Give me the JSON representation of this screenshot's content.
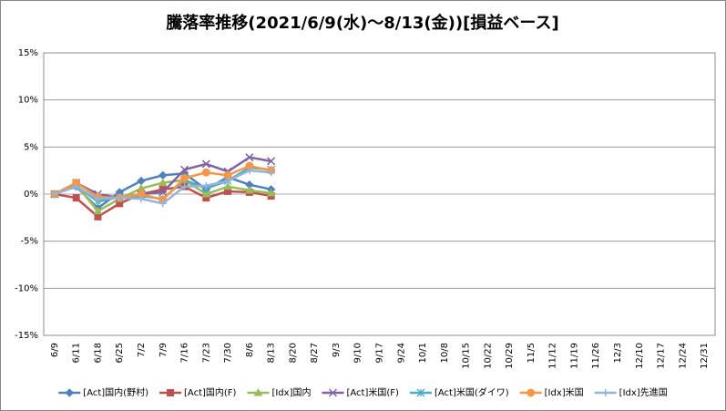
{
  "chart_data": {
    "type": "line",
    "title": "騰落率推移(2021/6/9(水)～8/13(金))[損益ベース]",
    "categories": [
      "6/9",
      "6/11",
      "6/18",
      "6/25",
      "7/2",
      "7/9",
      "7/16",
      "7/23",
      "7/30",
      "8/6",
      "8/13",
      "8/20",
      "8/27",
      "9/3",
      "9/10",
      "9/17",
      "9/24",
      "10/1",
      "10/8",
      "10/15",
      "10/22",
      "10/29",
      "11/5",
      "11/12",
      "11/19",
      "11/26",
      "12/3",
      "12/10",
      "12/17",
      "12/24",
      "12/31"
    ],
    "series": [
      {
        "name": "[Act]国内(野村)",
        "color": "#4f81bd",
        "marker": "diamond",
        "values": [
          0,
          0.8,
          -1.5,
          0.2,
          1.4,
          2.0,
          2.2,
          0.5,
          1.8,
          1.0,
          0.5,
          null,
          null,
          null,
          null,
          null,
          null,
          null,
          null,
          null,
          null,
          null,
          null,
          null,
          null,
          null,
          null,
          null,
          null,
          null,
          null
        ]
      },
      {
        "name": "[Act]国内(F)",
        "color": "#c0504d",
        "marker": "square",
        "values": [
          0,
          -0.4,
          -2.4,
          -1.0,
          0,
          0.5,
          0.8,
          -0.4,
          0.3,
          0.2,
          -0.2,
          null,
          null,
          null,
          null,
          null,
          null,
          null,
          null,
          null,
          null,
          null,
          null,
          null,
          null,
          null,
          null,
          null,
          null,
          null,
          null
        ]
      },
      {
        "name": "[Idx]国内",
        "color": "#9bbb59",
        "marker": "triangle",
        "values": [
          0,
          1.0,
          -1.8,
          -0.5,
          0.6,
          1.2,
          1.5,
          0,
          0.8,
          0.4,
          0.1,
          null,
          null,
          null,
          null,
          null,
          null,
          null,
          null,
          null,
          null,
          null,
          null,
          null,
          null,
          null,
          null,
          null,
          null,
          null,
          null
        ]
      },
      {
        "name": "[Act]米国(F)",
        "color": "#8064a2",
        "marker": "x",
        "values": [
          0,
          1.2,
          0.0,
          -0.4,
          0,
          0.2,
          2.6,
          3.2,
          2.4,
          3.9,
          3.5,
          null,
          null,
          null,
          null,
          null,
          null,
          null,
          null,
          null,
          null,
          null,
          null,
          null,
          null,
          null,
          null,
          null,
          null,
          null,
          null
        ]
      },
      {
        "name": "[Act]米国(ダイワ)",
        "color": "#4bacc6",
        "marker": "star",
        "values": [
          0,
          0.9,
          -0.8,
          -0.3,
          -0.2,
          -0.5,
          1.5,
          0.6,
          1.4,
          2.8,
          2.6,
          null,
          null,
          null,
          null,
          null,
          null,
          null,
          null,
          null,
          null,
          null,
          null,
          null,
          null,
          null,
          null,
          null,
          null,
          null,
          null
        ]
      },
      {
        "name": "[Idx]米国",
        "color": "#f79646",
        "marker": "circle",
        "values": [
          0,
          1.2,
          -0.3,
          -0.4,
          0,
          -0.6,
          1.7,
          2.3,
          2.0,
          3.0,
          2.5,
          null,
          null,
          null,
          null,
          null,
          null,
          null,
          null,
          null,
          null,
          null,
          null,
          null,
          null,
          null,
          null,
          null,
          null,
          null,
          null
        ]
      },
      {
        "name": "[Idx]先進国",
        "color": "#95b3d7",
        "marker": "plus",
        "values": [
          0,
          0.8,
          -0.5,
          -0.4,
          -0.5,
          -1.0,
          0.8,
          0.9,
          1.4,
          2.5,
          2.3,
          null,
          null,
          null,
          null,
          null,
          null,
          null,
          null,
          null,
          null,
          null,
          null,
          null,
          null,
          null,
          null,
          null,
          null,
          null,
          null
        ]
      }
    ],
    "ylim": [
      -15,
      15
    ],
    "yticks": [
      {
        "value": -15,
        "label": "-15%"
      },
      {
        "value": -10,
        "label": "-10%"
      },
      {
        "value": -5,
        "label": "-5%"
      },
      {
        "value": 0,
        "label": "0%"
      },
      {
        "value": 5,
        "label": "5%"
      },
      {
        "value": 10,
        "label": "10%"
      },
      {
        "value": 15,
        "label": "15%"
      }
    ],
    "grid": true,
    "legend": "bottom"
  }
}
